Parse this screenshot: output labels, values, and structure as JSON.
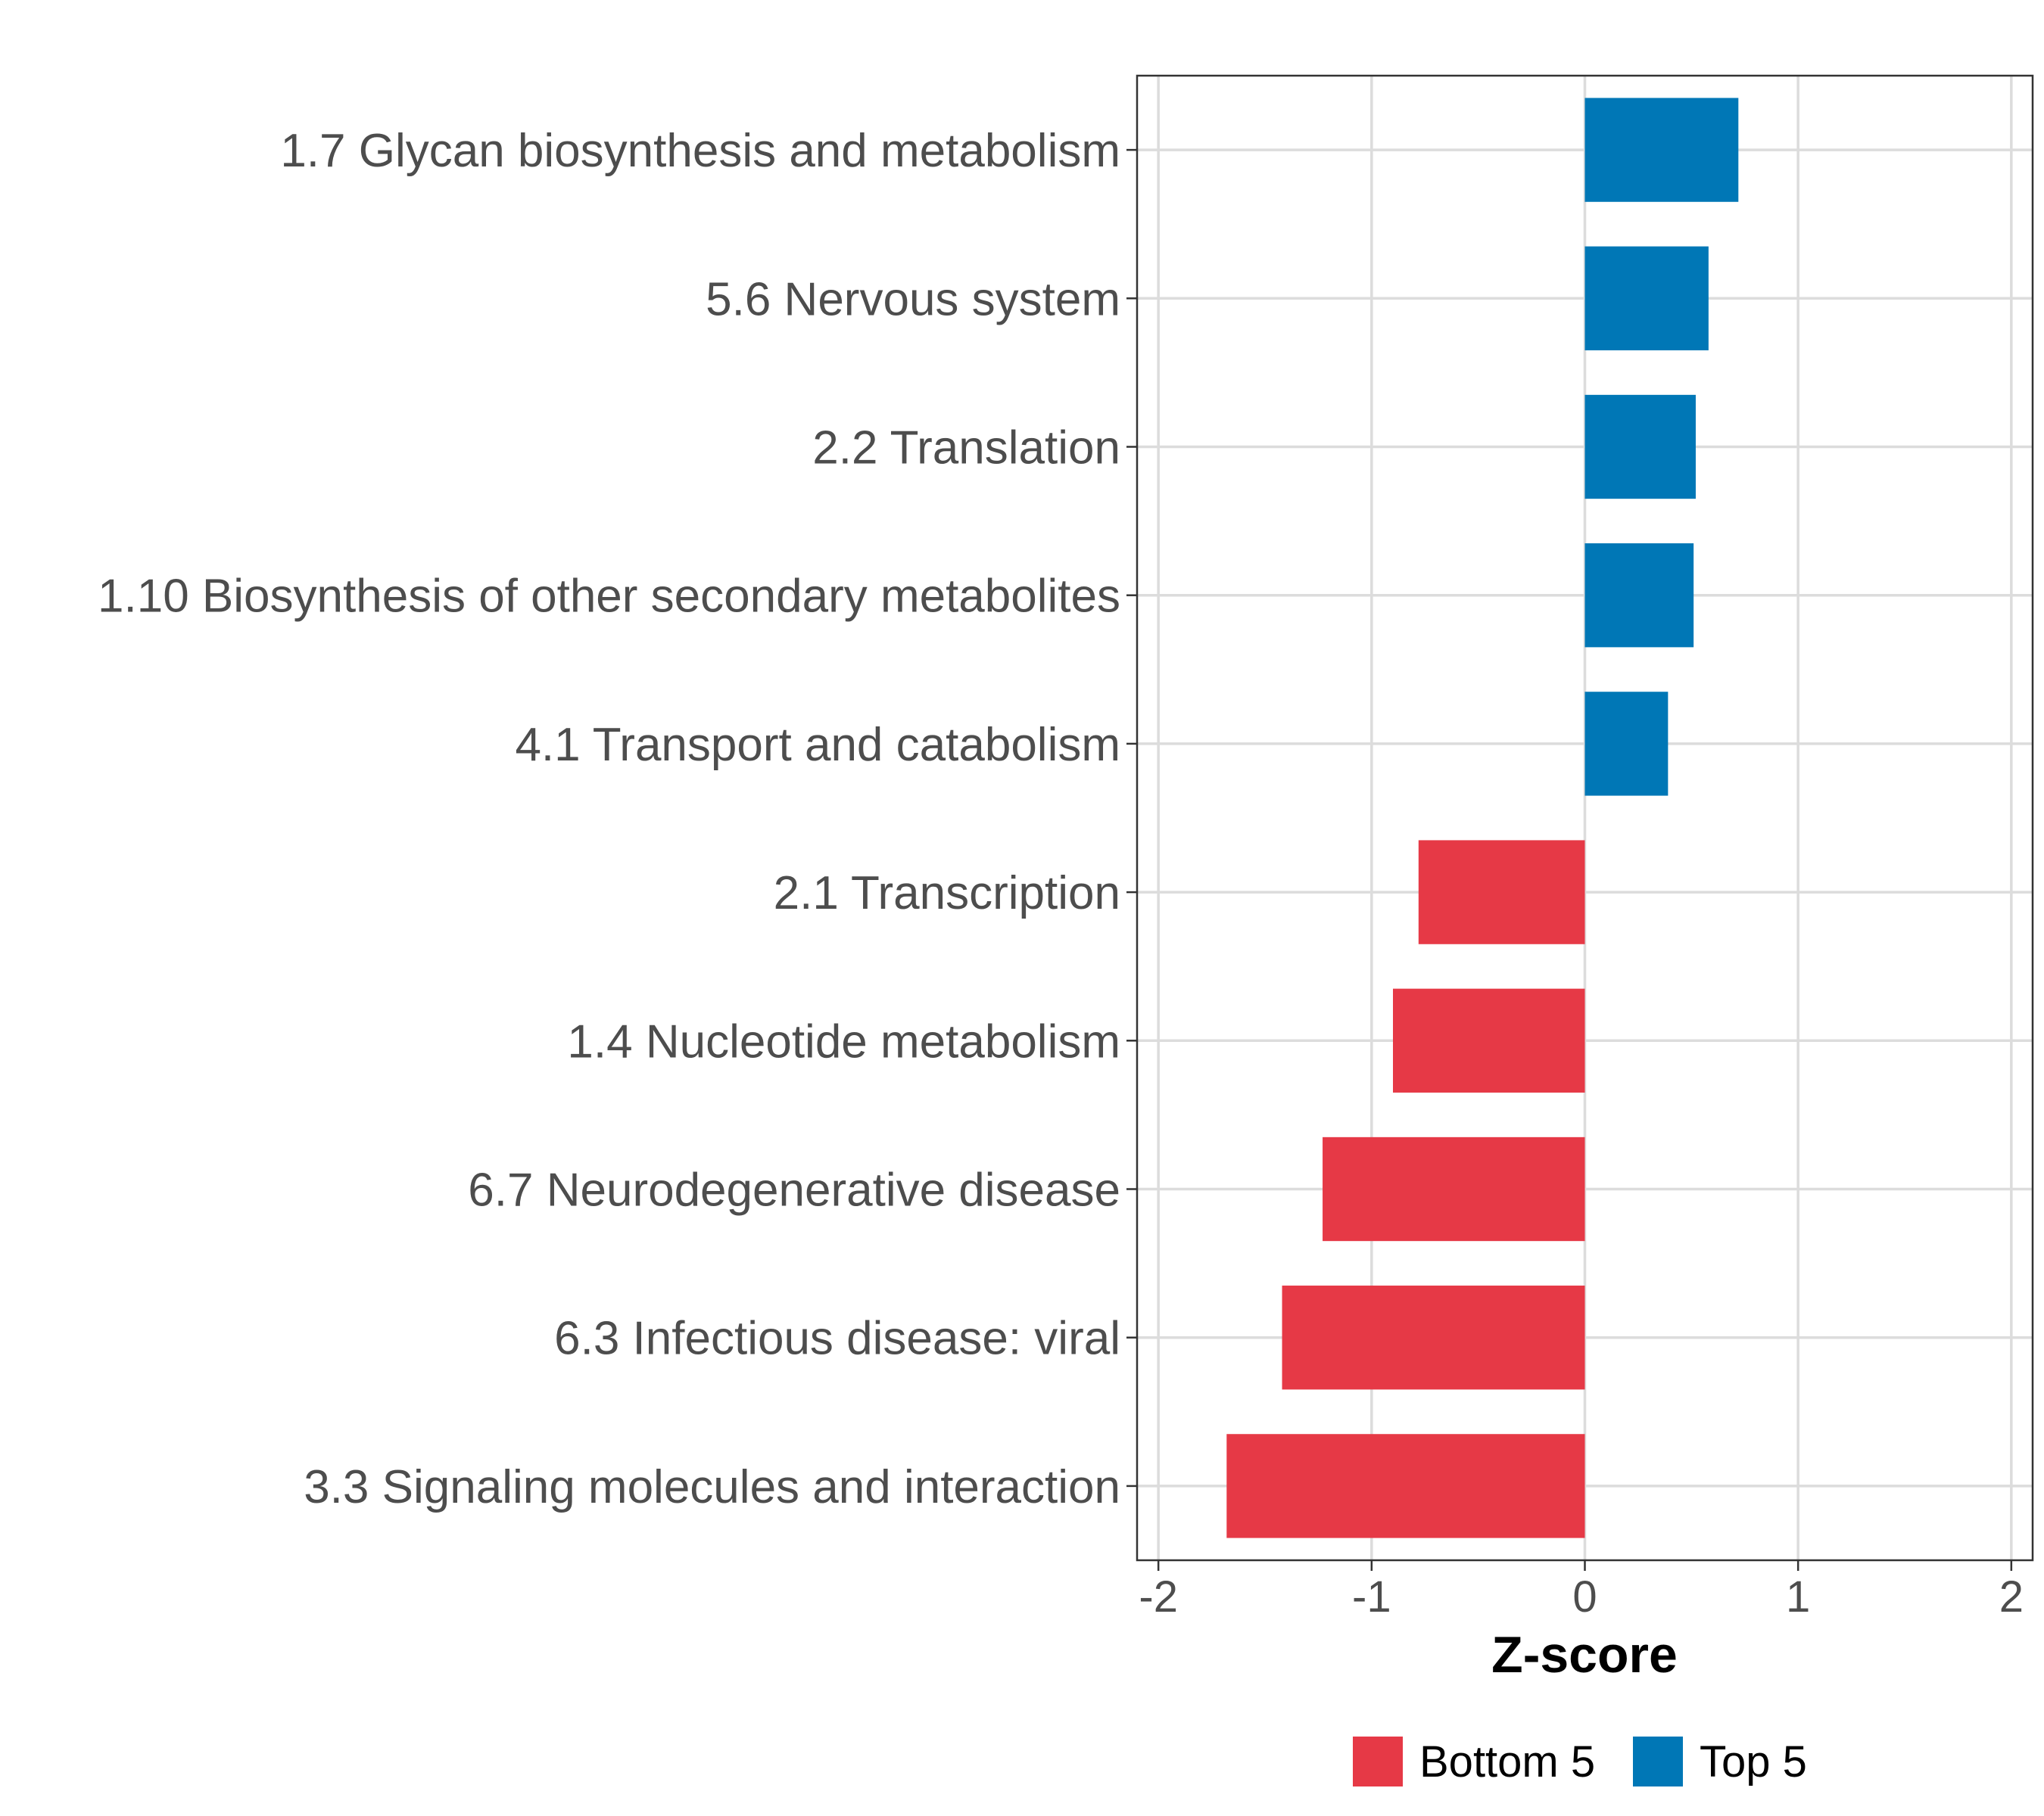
{
  "chart_data": {
    "type": "bar",
    "orientation": "horizontal",
    "title": "",
    "xlabel": "Z-score",
    "ylabel": "",
    "xlim": [
      -2.1,
      2.1
    ],
    "xticks": [
      -2,
      -1,
      0,
      1,
      2
    ],
    "xtick_labels": [
      "-2",
      "-1",
      "0",
      "1",
      "2"
    ],
    "grid": true,
    "legend_position": "bottom",
    "categories": [
      "1.7 Glycan biosynthesis and metabolism",
      "5.6 Nervous system",
      "2.2 Translation",
      "1.10 Biosynthesis of other secondary metabolites",
      "4.1 Transport and catabolism",
      "2.1 Transcription",
      "1.4 Nucleotide metabolism",
      "6.7 Neurodegenerative disease",
      "6.3 Infectious disease: viral",
      "3.3 Signaling molecules and interaction"
    ],
    "values": [
      0.72,
      0.58,
      0.52,
      0.51,
      0.39,
      -0.78,
      -0.9,
      -1.23,
      -1.42,
      -1.68
    ],
    "groups": [
      "Top 5",
      "Top 5",
      "Top 5",
      "Top 5",
      "Top 5",
      "Bottom 5",
      "Bottom 5",
      "Bottom 5",
      "Bottom 5",
      "Bottom 5"
    ],
    "legend": [
      {
        "name": "Bottom 5",
        "color": "#E63946"
      },
      {
        "name": "Top 5",
        "color": "#0077B6"
      }
    ]
  }
}
